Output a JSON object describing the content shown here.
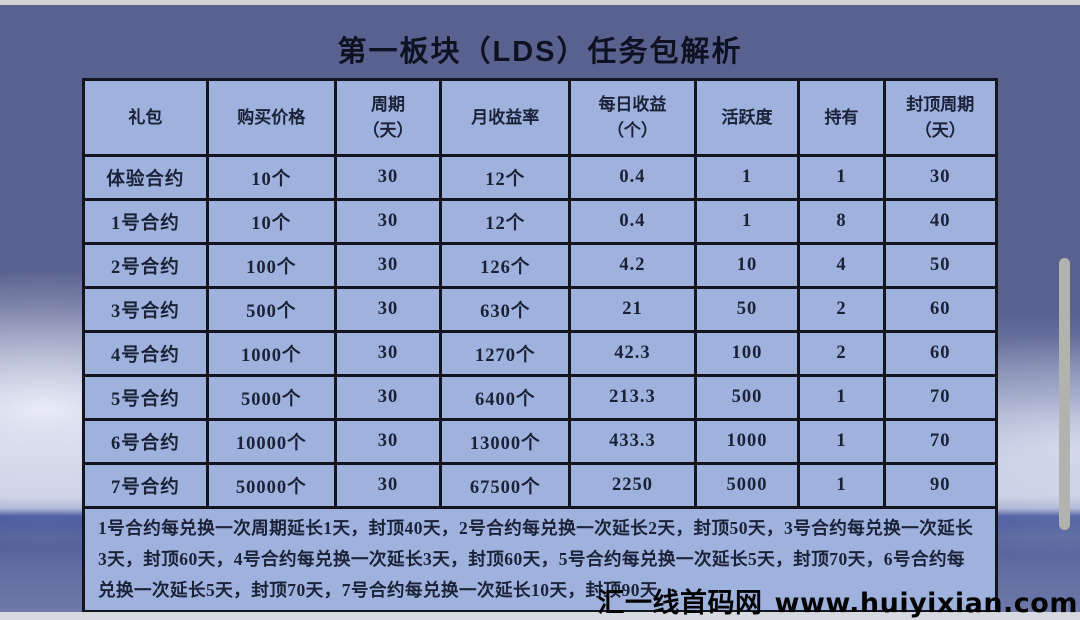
{
  "title": "第一板块（LDS）任务包解析",
  "table": {
    "columns": [
      "礼包",
      "购买价格",
      "周期\n（天）",
      "月收益率",
      "每日收益\n（个）",
      "活跃度",
      "持有",
      "封顶周期\n（天）"
    ],
    "column_widths": [
      "13.6%",
      "14.1%",
      "11.5%",
      "14.2%",
      "13.8%",
      "11.3%",
      "9.2%",
      "12.3%"
    ],
    "rows": [
      [
        "体验合约",
        "10个",
        "30",
        "12个",
        "0.4",
        "1",
        "1",
        "30"
      ],
      [
        "1号合约",
        "10个",
        "30",
        "12个",
        "0.4",
        "1",
        "8",
        "40"
      ],
      [
        "2号合约",
        "100个",
        "30",
        "126个",
        "4.2",
        "10",
        "4",
        "50"
      ],
      [
        "3号合约",
        "500个",
        "30",
        "630个",
        "21",
        "50",
        "2",
        "60"
      ],
      [
        "4号合约",
        "1000个",
        "30",
        "1270个",
        "42.3",
        "100",
        "2",
        "60"
      ],
      [
        "5号合约",
        "5000个",
        "30",
        "6400个",
        "213.3",
        "500",
        "1",
        "70"
      ],
      [
        "6号合约",
        "10000个",
        "30",
        "13000个",
        "433.3",
        "1000",
        "1",
        "70"
      ],
      [
        "7号合约",
        "50000个",
        "30",
        "67500个",
        "2250",
        "5000",
        "1",
        "90"
      ]
    ]
  },
  "footnote": "1号合约每兑换一次周期延长1天，封顶40天，2号合约每兑换一次延长2天，封顶50天，3号合约每兑换一次延长3天，封顶60天，4号合约每兑换一次延长3天，封顶60天，5号合约每兑换一次延长5天，封顶70天，6号合约每兑换一次延长5天，封顶70天，7号合约每兑换一次延长10天，封顶90天",
  "watermark": {
    "site": "汇一线首码网",
    "url": "www.huiyixian.com"
  },
  "colors": {
    "cell_bg": "#9fb2de",
    "table_border": "#15151f",
    "background_top": "#59618f",
    "horizon_stripe": "#2c3f8d",
    "top_bar": "#d2d2d3",
    "scrollbar": "#b2b2af"
  }
}
